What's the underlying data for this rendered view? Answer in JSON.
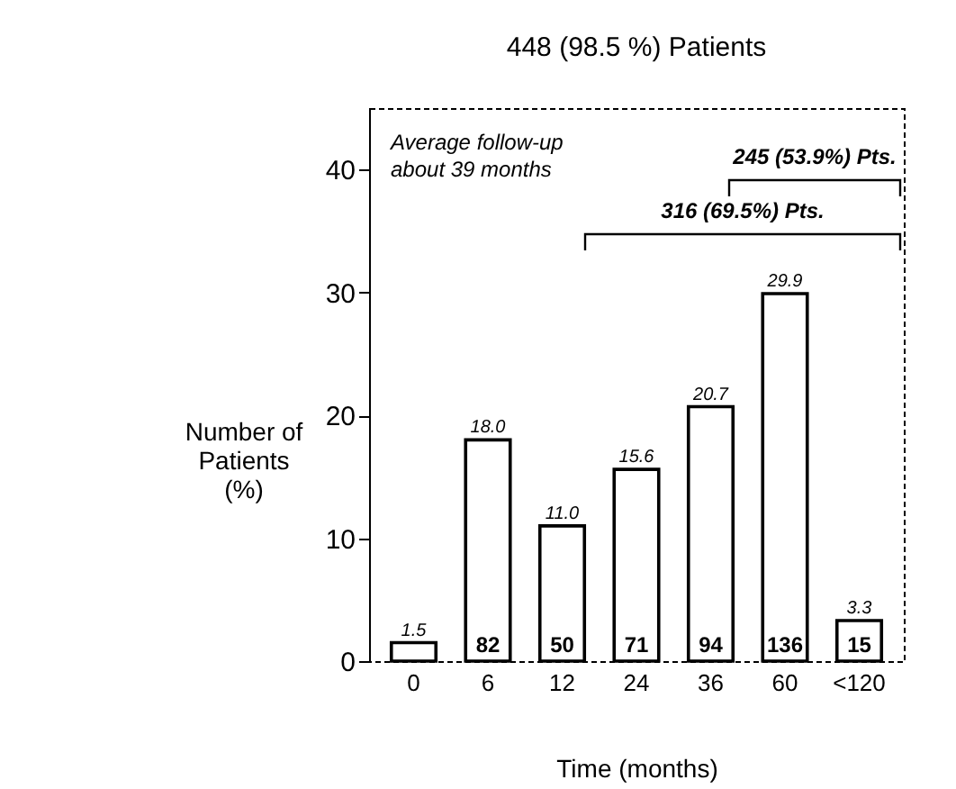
{
  "chart_data": {
    "type": "bar",
    "title": "448 (98.5 %) Patients",
    "xlabel": "Time (months)",
    "ylabel": "Number of\nPatients\n(%)",
    "categories": [
      "0",
      "6",
      "12",
      "24",
      "36",
      "60",
      "<120"
    ],
    "values": [
      1.5,
      18.0,
      11.0,
      15.6,
      20.7,
      29.9,
      3.3
    ],
    "value_labels": [
      "1.5",
      "18.0",
      "11.0",
      "15.6",
      "20.7",
      "29.9",
      "3.3"
    ],
    "color": "#ffffff",
    "ylim": [
      0,
      45
    ],
    "yticks": [
      0,
      10,
      20,
      30,
      40
    ],
    "grid": false,
    "annotations": [
      "Average follow-up\nabout 39 months",
      "245 (53.9%) Pts.",
      "316 (69.5%) Pts.",
      "82",
      "50",
      "71",
      "94",
      "136",
      "15"
    ]
  }
}
